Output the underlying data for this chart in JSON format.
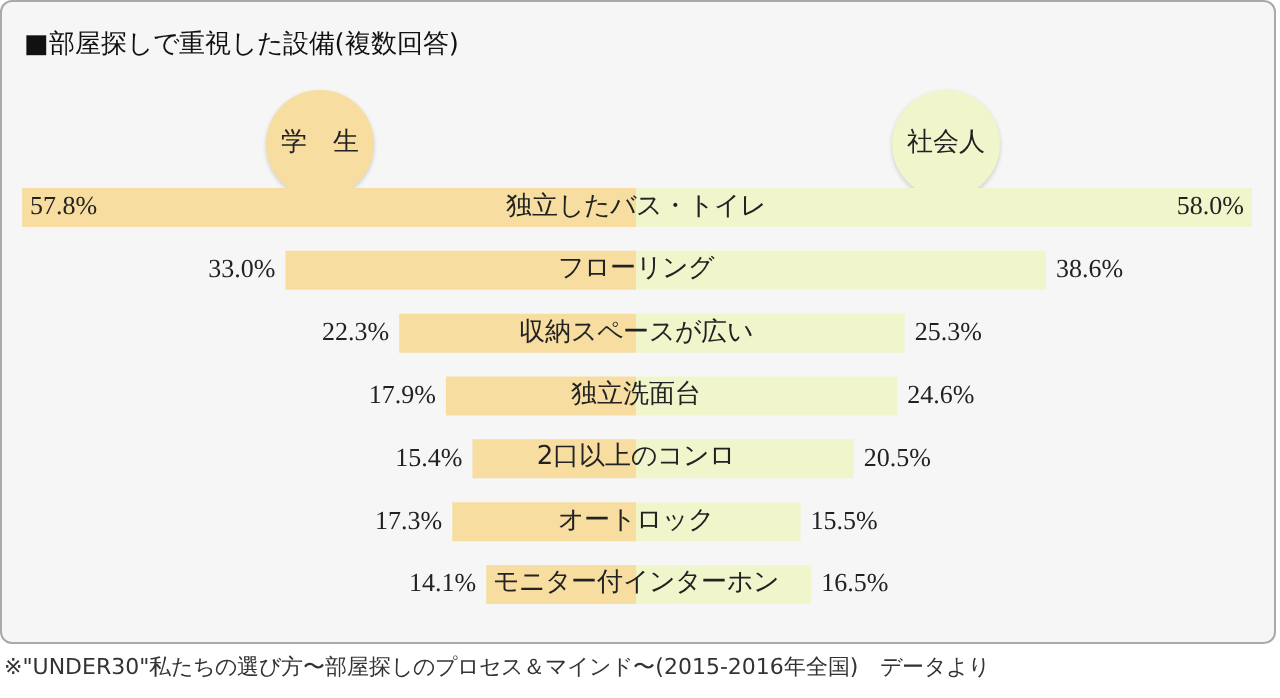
{
  "chart_data": [
    {
      "type": "bar",
      "orientation": "horizontal",
      "title": "■部屋探しで重視した設備(複数回答)",
      "categories": [
        "独立したバス・トイレ",
        "フローリング",
        "収納スペースが広い",
        "独立洗面台",
        "2口以上のコンロ",
        "オートロック",
        "モニター付インターホン"
      ],
      "series": [
        {
          "name": "学　生",
          "color": "#f7dea0",
          "values": [
            57.8,
            33.0,
            22.3,
            17.9,
            15.4,
            17.3,
            14.1
          ],
          "value_labels": [
            "57.8%",
            "33.0%",
            "22.3%",
            "17.9%",
            "15.4%",
            "17.3%",
            "14.1%"
          ]
        }
      ],
      "legend": "top",
      "tick_labels": "y",
      "annotations": [
        "※\"UNDER30\"私たちの選び方〜部屋探しのプロセス＆マインド〜(2015-2016年全国)　データより"
      ]
    },
    {
      "type": "bar",
      "orientation": "horizontal",
      "categories": [
        null,
        null,
        null,
        null,
        null,
        null,
        null
      ],
      "series": [
        {
          "name": "社会人",
          "color": "#f0f5cc",
          "values": [
            58.0,
            38.6,
            25.3,
            24.6,
            20.5,
            15.5,
            16.5
          ],
          "value_labels": [
            "58.0%",
            "38.6%",
            "25.3%",
            "24.6%",
            "20.5%",
            "15.5%",
            "16.5%"
          ]
        }
      ],
      "legend": "top",
      "tick_labels": false
    }
  ]
}
